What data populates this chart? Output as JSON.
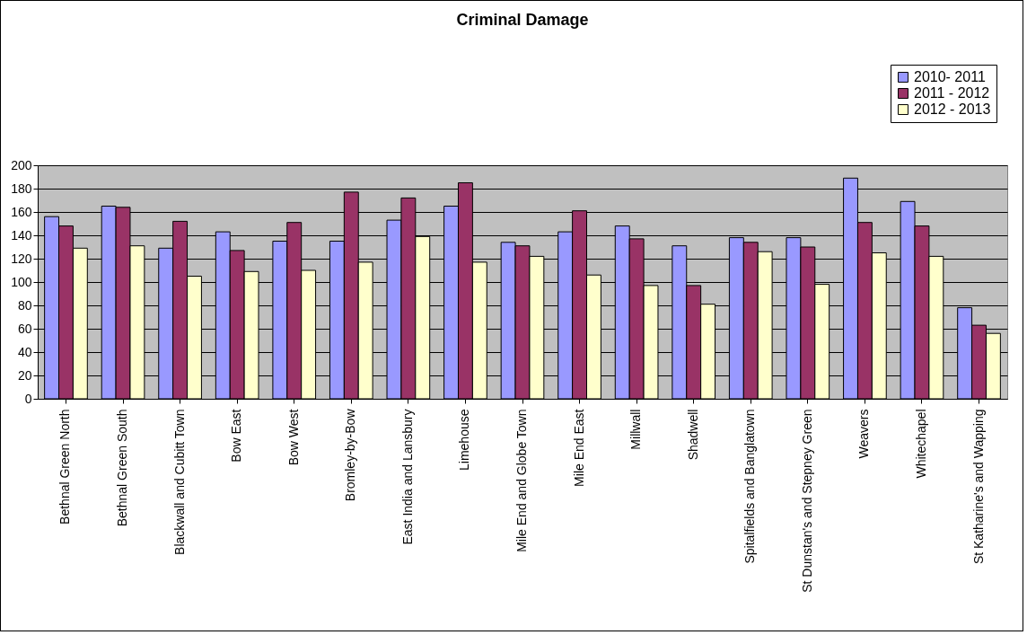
{
  "chart_data": {
    "type": "bar",
    "title": "Criminal Damage",
    "categories": [
      "Bethnal Green North",
      "Bethnal Green South",
      "Blackwall and Cubitt Town",
      "Bow East",
      "Bow West",
      "Bromley-by-Bow",
      "East India and Lansbury",
      "Limehouse",
      "Mile End and Globe Town",
      "Mile End East",
      "Millwall",
      "Shadwell",
      "Spitalfields and Banglatown",
      "St Dunstan's and Stepney Green",
      "Weavers",
      "Whitechapel",
      "St Katharine's and Wapping"
    ],
    "series": [
      {
        "name": "2010- 2011",
        "color": "#9999ff",
        "values": [
          156,
          165,
          129,
          143,
          135,
          135,
          153,
          165,
          134,
          143,
          148,
          131,
          138,
          138,
          189,
          169,
          78
        ]
      },
      {
        "name": "2011 - 2012",
        "color": "#993366",
        "values": [
          148,
          164,
          152,
          127,
          151,
          177,
          172,
          185,
          131,
          161,
          137,
          97,
          134,
          130,
          151,
          148,
          63
        ]
      },
      {
        "name": "2012 - 2013",
        "color": "#ffffcc",
        "values": [
          129,
          131,
          105,
          109,
          110,
          117,
          139,
          117,
          122,
          106,
          97,
          81,
          126,
          98,
          125,
          122,
          56
        ]
      }
    ],
    "ylim": [
      0,
      200
    ],
    "yticks": [
      0,
      20,
      40,
      60,
      80,
      100,
      120,
      140,
      160,
      180,
      200
    ],
    "grid": "y",
    "legend": "top right"
  }
}
